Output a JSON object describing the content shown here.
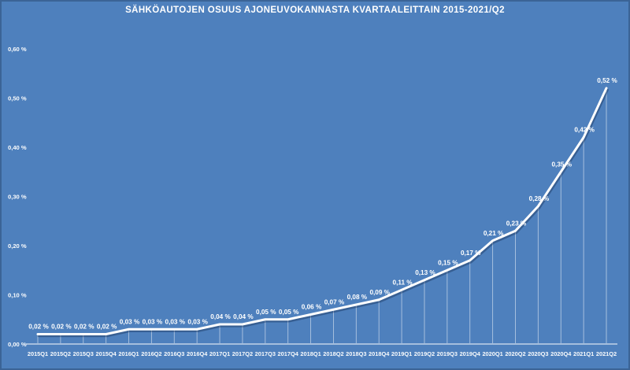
{
  "chart_data": {
    "type": "line",
    "title": "SÄHKÖAUTOJEN OSUUS AJONEUVOKANNASTA KVARTAALEITTAIN 2015-2021/Q2",
    "categories": [
      "2015Q1",
      "2015Q2",
      "2015Q3",
      "2015Q4",
      "2016Q1",
      "2016Q2",
      "2016Q3",
      "2016Q4",
      "2017Q1",
      "2017Q2",
      "2017Q3",
      "2017Q4",
      "2018Q1",
      "2018Q2",
      "2018Q3",
      "2018Q4",
      "2019Q1",
      "2019Q2",
      "2019Q3",
      "2019Q4",
      "2020Q1",
      "2020Q2",
      "2020Q3",
      "2020Q4",
      "2021Q1",
      "2021Q2"
    ],
    "values": [
      0.02,
      0.02,
      0.02,
      0.02,
      0.03,
      0.03,
      0.03,
      0.03,
      0.04,
      0.04,
      0.05,
      0.05,
      0.06,
      0.07,
      0.08,
      0.09,
      0.11,
      0.13,
      0.15,
      0.17,
      0.21,
      0.23,
      0.28,
      0.35,
      0.42,
      0.52
    ],
    "point_labels": [
      "0,02 %",
      "0,02 %",
      "0,02 %",
      "0,02 %",
      "0,03 %",
      "0,03 %",
      "0,03 %",
      "0,03 %",
      "0,04 %",
      "0,04 %",
      "0,05 %",
      "0,05 %",
      "0,06 %",
      "0,07 %",
      "0,08 %",
      "0,09 %",
      "0,11 %",
      "0,13 %",
      "0,15 %",
      "0,17 %",
      "0,21 %",
      "0,23 %",
      "0,28 %",
      "0,35 %",
      "0,42 %",
      "0,52 %"
    ],
    "y_ticks": {
      "values": [
        0.0,
        0.1,
        0.2,
        0.3,
        0.4,
        0.5,
        0.6
      ],
      "labels": [
        "0,00 %",
        "0,10 %",
        "0,20 %",
        "0,30 %",
        "0,40 %",
        "0,50 %",
        "0,60 %"
      ]
    },
    "ylim": [
      0,
      0.6
    ],
    "xlabel": "",
    "ylabel": "",
    "legend": "none",
    "grid": "vertical drop lines at each data point, no horizontal gridlines",
    "colors": {
      "background": "#4e80bd",
      "border": "#3b6496",
      "line": "#ffffff",
      "labels": "#ffffff",
      "axis_line": "#e9eef6",
      "drop_line": "#ffffff"
    }
  }
}
